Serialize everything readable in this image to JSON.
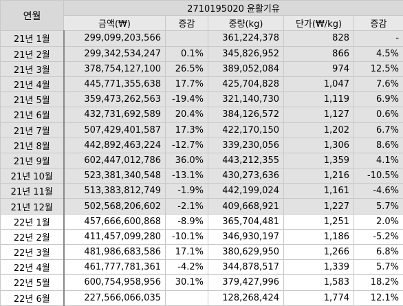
{
  "header": {
    "month_label": "연월",
    "title": "2710195020 윤활기유",
    "columns": [
      "금액(₩)",
      "증감",
      "중량(kg)",
      "단가(₩/kg)",
      "증감"
    ]
  },
  "rows": [
    {
      "month": "21년 1월",
      "amount": "299,099,203,566",
      "amount_change": "",
      "weight": "361,224,378",
      "unit_price": "828",
      "price_change": "-",
      "shade": "g"
    },
    {
      "month": "21년 2월",
      "amount": "299,342,534,247",
      "amount_change": "0.1%",
      "weight": "345,826,952",
      "unit_price": "866",
      "price_change": "4.5%",
      "shade": "g"
    },
    {
      "month": "21년 3월",
      "amount": "378,754,127,100",
      "amount_change": "26.5%",
      "weight": "389,052,084",
      "unit_price": "974",
      "price_change": "12.5%",
      "shade": "g"
    },
    {
      "month": "21년 4월",
      "amount": "445,771,355,638",
      "amount_change": "17.7%",
      "weight": "425,704,828",
      "unit_price": "1,047",
      "price_change": "7.6%",
      "shade": "g"
    },
    {
      "month": "21년 5월",
      "amount": "359,473,262,563",
      "amount_change": "-19.4%",
      "weight": "321,140,730",
      "unit_price": "1,119",
      "price_change": "6.9%",
      "shade": "g"
    },
    {
      "month": "21년 6월",
      "amount": "432,731,692,589",
      "amount_change": "20.4%",
      "weight": "384,126,572",
      "unit_price": "1,127",
      "price_change": "0.6%",
      "shade": "g"
    },
    {
      "month": "21년 7월",
      "amount": "507,429,401,587",
      "amount_change": "17.3%",
      "weight": "422,170,150",
      "unit_price": "1,202",
      "price_change": "6.7%",
      "shade": "g"
    },
    {
      "month": "21년 8월",
      "amount": "442,892,463,224",
      "amount_change": "-12.7%",
      "weight": "339,230,056",
      "unit_price": "1,306",
      "price_change": "8.6%",
      "shade": "g"
    },
    {
      "month": "21년 9월",
      "amount": "602,447,012,786",
      "amount_change": "36.0%",
      "weight": "443,212,355",
      "unit_price": "1,359",
      "price_change": "4.1%",
      "shade": "g"
    },
    {
      "month": "21년 10월",
      "amount": "523,381,340,548",
      "amount_change": "-13.1%",
      "weight": "430,273,636",
      "unit_price": "1,216",
      "price_change": "-10.5%",
      "shade": "g"
    },
    {
      "month": "21년 11월",
      "amount": "513,383,812,749",
      "amount_change": "-1.9%",
      "weight": "442,199,024",
      "unit_price": "1,161",
      "price_change": "-4.6%",
      "shade": "g"
    },
    {
      "month": "21년 12월",
      "amount": "502,568,206,602",
      "amount_change": "-2.1%",
      "weight": "409,668,921",
      "unit_price": "1,227",
      "price_change": "5.7%",
      "shade": "g"
    },
    {
      "month": "22년 1월",
      "amount": "457,666,600,868",
      "amount_change": "-8.9%",
      "weight": "365,704,481",
      "unit_price": "1,251",
      "price_change": "2.0%",
      "shade": "w"
    },
    {
      "month": "22년 2월",
      "amount": "411,457,099,280",
      "amount_change": "-10.1%",
      "weight": "346,930,197",
      "unit_price": "1,186",
      "price_change": "-5.2%",
      "shade": "w"
    },
    {
      "month": "22년 3월",
      "amount": "481,986,683,586",
      "amount_change": "17.1%",
      "weight": "380,629,950",
      "unit_price": "1,266",
      "price_change": "6.8%",
      "shade": "w"
    },
    {
      "month": "22년 4월",
      "amount": "461,777,781,361",
      "amount_change": "-4.2%",
      "weight": "344,878,517",
      "unit_price": "1,339",
      "price_change": "5.7%",
      "shade": "w"
    },
    {
      "month": "22년 5월",
      "amount": "600,754,958,956",
      "amount_change": "30.1%",
      "weight": "379,427,996",
      "unit_price": "1,583",
      "price_change": "18.2%",
      "shade": "w"
    },
    {
      "month": "22년 6월",
      "amount": "227,566,066,035",
      "amount_change": "",
      "weight": "128,268,424",
      "unit_price": "1,774",
      "price_change": "12.1%",
      "shade": "w"
    }
  ]
}
